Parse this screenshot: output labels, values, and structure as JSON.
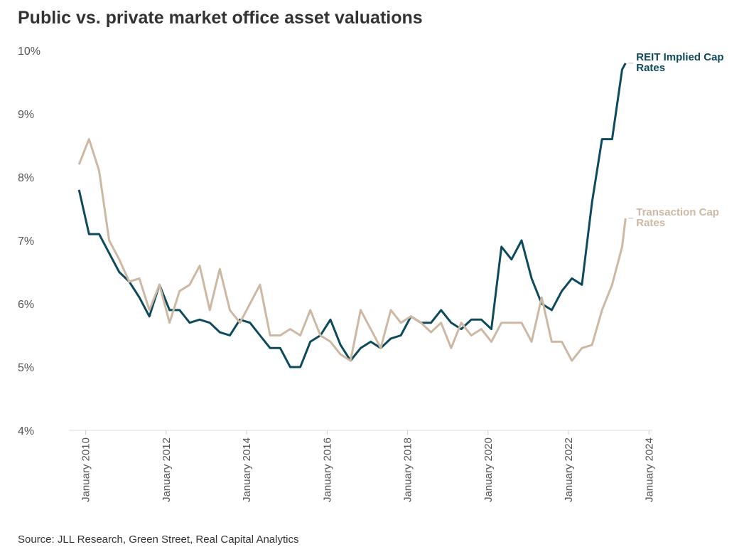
{
  "chart_data": {
    "type": "line",
    "title": "Public vs. private market office asset valuations",
    "source": "Source: JLL Research, Green Street, Real Capital Analytics",
    "x": [
      "2009-11",
      "2010-02",
      "2010-05",
      "2010-08",
      "2010-11",
      "2011-02",
      "2011-05",
      "2011-08",
      "2011-11",
      "2012-02",
      "2012-05",
      "2012-08",
      "2012-11",
      "2013-02",
      "2013-05",
      "2013-08",
      "2013-11",
      "2014-02",
      "2014-05",
      "2014-08",
      "2014-11",
      "2015-02",
      "2015-05",
      "2015-08",
      "2015-11",
      "2016-02",
      "2016-05",
      "2016-08",
      "2016-11",
      "2017-02",
      "2017-05",
      "2017-08",
      "2017-11",
      "2018-02",
      "2018-05",
      "2018-08",
      "2018-11",
      "2019-02",
      "2019-05",
      "2019-08",
      "2019-11",
      "2020-02",
      "2020-05",
      "2020-08",
      "2020-11",
      "2021-02",
      "2021-05",
      "2021-08",
      "2021-11",
      "2022-02",
      "2022-05",
      "2022-08",
      "2022-11",
      "2023-02",
      "2023-05",
      "2023-06"
    ],
    "series": [
      {
        "name": "REIT Implied Cap Rates",
        "color": "#0d4a5c",
        "values": [
          7.8,
          7.1,
          7.1,
          6.8,
          6.5,
          6.35,
          6.1,
          5.8,
          6.3,
          5.9,
          5.9,
          5.7,
          5.75,
          5.7,
          5.55,
          5.5,
          5.75,
          5.7,
          5.5,
          5.3,
          5.3,
          5.0,
          5.0,
          5.4,
          5.5,
          5.75,
          5.35,
          5.1,
          5.3,
          5.4,
          5.3,
          5.45,
          5.5,
          5.8,
          5.7,
          5.7,
          5.9,
          5.7,
          5.6,
          5.75,
          5.75,
          5.6,
          6.9,
          6.7,
          7.0,
          6.4,
          6.0,
          5.9,
          6.2,
          6.4,
          6.3,
          7.6,
          8.6,
          8.6,
          9.7,
          9.8
        ]
      },
      {
        "name": "Transaction Cap Rates",
        "color": "#cdb8a4",
        "values": [
          8.2,
          8.6,
          8.1,
          7.0,
          6.7,
          6.35,
          6.4,
          5.9,
          6.3,
          5.7,
          6.2,
          6.3,
          6.6,
          5.9,
          6.55,
          5.9,
          5.7,
          6.0,
          6.3,
          5.5,
          5.5,
          5.6,
          5.5,
          5.9,
          5.5,
          5.4,
          5.2,
          5.1,
          5.9,
          5.6,
          5.3,
          5.9,
          5.7,
          5.8,
          5.7,
          5.55,
          5.7,
          5.3,
          5.7,
          5.5,
          5.6,
          5.4,
          5.7,
          5.7,
          5.7,
          5.4,
          6.1,
          5.4,
          5.4,
          5.1,
          5.3,
          5.35,
          5.9,
          6.3,
          6.9,
          7.35
        ]
      }
    ],
    "xlim": [
      "2009-08",
      "2024-02"
    ],
    "xticks": [
      {
        "value": "2010-01",
        "label": "January 2010"
      },
      {
        "value": "2012-01",
        "label": "January 2012"
      },
      {
        "value": "2014-01",
        "label": "January 2014"
      },
      {
        "value": "2016-01",
        "label": "January 2016"
      },
      {
        "value": "2018-01",
        "label": "January 2018"
      },
      {
        "value": "2020-01",
        "label": "January 2020"
      },
      {
        "value": "2022-01",
        "label": "January 2022"
      },
      {
        "value": "2024-01",
        "label": "January 2024"
      }
    ],
    "ylim": [
      4,
      10
    ],
    "yticks": [
      {
        "value": 4,
        "label": "4%"
      },
      {
        "value": 5,
        "label": "5%"
      },
      {
        "value": 6,
        "label": "6%"
      },
      {
        "value": 7,
        "label": "7%"
      },
      {
        "value": 8,
        "label": "8%"
      },
      {
        "value": 9,
        "label": "9%"
      },
      {
        "value": 10,
        "label": "10%"
      }
    ],
    "grid": false
  }
}
